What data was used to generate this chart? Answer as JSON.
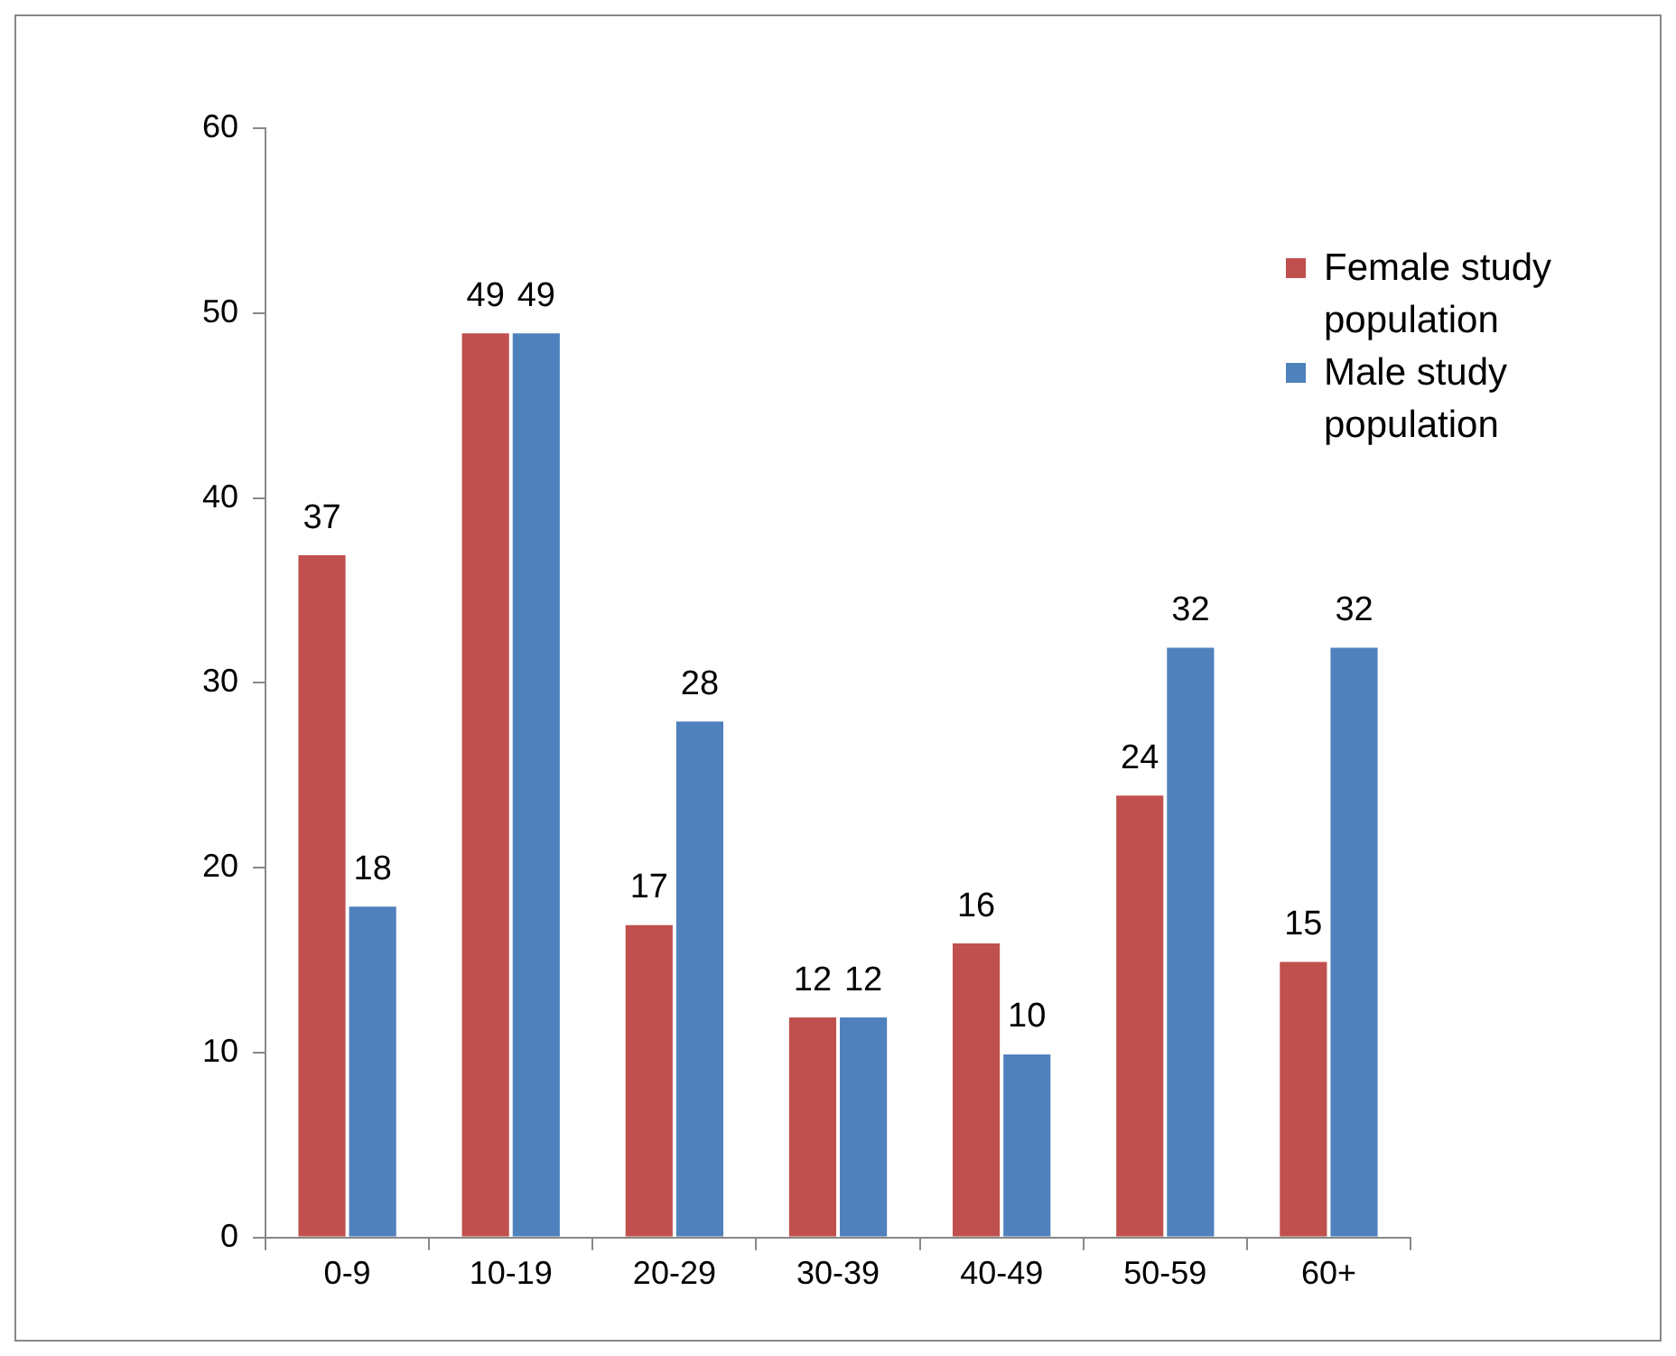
{
  "chart_data": {
    "type": "bar",
    "categories": [
      "0-9",
      "10-19",
      "20-29",
      "30-39",
      "40-49",
      "50-59",
      "60+"
    ],
    "series": [
      {
        "name": "Female study population",
        "color": "#c0504d",
        "values": [
          37,
          49,
          17,
          12,
          16,
          24,
          15
        ]
      },
      {
        "name": "Male study population",
        "color": "#4f81bd",
        "values": [
          18,
          49,
          28,
          12,
          10,
          32,
          32
        ]
      }
    ],
    "ylim": [
      0,
      60
    ],
    "yticks": [
      0,
      10,
      20,
      30,
      40,
      50,
      60
    ],
    "grid": false,
    "legend": "top right",
    "data_labels": true
  }
}
